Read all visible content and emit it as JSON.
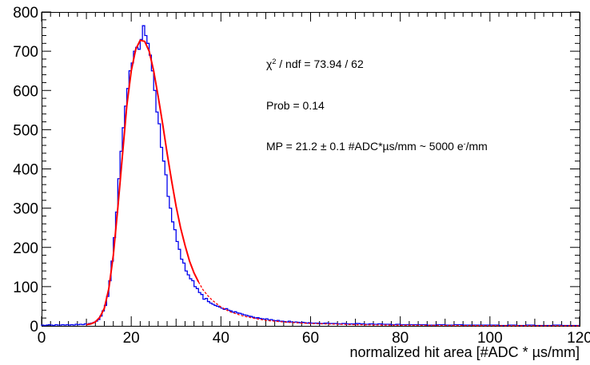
{
  "chart_data": {
    "type": "histogram",
    "title": "",
    "xlabel": "normalized hit area [#ADC * µs/mm]",
    "ylabel": "",
    "xlim": [
      0,
      120
    ],
    "ylim": [
      0,
      800
    ],
    "xticks": [
      0,
      20,
      40,
      60,
      80,
      100,
      120
    ],
    "yticks": [
      0,
      100,
      200,
      300,
      400,
      500,
      600,
      700,
      800
    ],
    "bin_width": 0.5,
    "grid": false,
    "legend": "none",
    "histogram": {
      "color": "#0000ee",
      "bins": [
        [
          0,
          2
        ],
        [
          0.5,
          1
        ],
        [
          1,
          2
        ],
        [
          1.5,
          3
        ],
        [
          2,
          2
        ],
        [
          2.5,
          1
        ],
        [
          3,
          3
        ],
        [
          3.5,
          2
        ],
        [
          4,
          2
        ],
        [
          4.5,
          3
        ],
        [
          5,
          2
        ],
        [
          5.5,
          3
        ],
        [
          6,
          2
        ],
        [
          6.5,
          3
        ],
        [
          7,
          2
        ],
        [
          7.5,
          4
        ],
        [
          8,
          3
        ],
        [
          8.5,
          4
        ],
        [
          9,
          3
        ],
        [
          9.5,
          5
        ],
        [
          10,
          4
        ],
        [
          10.5,
          6
        ],
        [
          11,
          7
        ],
        [
          11.5,
          9
        ],
        [
          12,
          12
        ],
        [
          12.5,
          16
        ],
        [
          13,
          25
        ],
        [
          13.5,
          38
        ],
        [
          14,
          52
        ],
        [
          14.5,
          75
        ],
        [
          15,
          115
        ],
        [
          15.5,
          165
        ],
        [
          16,
          225
        ],
        [
          16.5,
          290
        ],
        [
          17,
          375
        ],
        [
          17.5,
          445
        ],
        [
          18,
          505
        ],
        [
          18.5,
          560
        ],
        [
          19,
          605
        ],
        [
          19.5,
          650
        ],
        [
          20,
          670
        ],
        [
          20.5,
          700
        ],
        [
          21,
          710
        ],
        [
          21.5,
          705
        ],
        [
          22,
          730
        ],
        [
          22.5,
          765
        ],
        [
          23,
          740
        ],
        [
          23.5,
          720
        ],
        [
          24,
          690
        ],
        [
          24.5,
          650
        ],
        [
          25,
          600
        ],
        [
          25.5,
          545
        ],
        [
          26,
          515
        ],
        [
          26.5,
          455
        ],
        [
          27,
          420
        ],
        [
          27.5,
          385
        ],
        [
          28,
          330
        ],
        [
          28.5,
          300
        ],
        [
          29,
          265
        ],
        [
          29.5,
          245
        ],
        [
          30,
          215
        ],
        [
          30.5,
          195
        ],
        [
          31,
          170
        ],
        [
          31.5,
          160
        ],
        [
          32,
          140
        ],
        [
          32.5,
          130
        ],
        [
          33,
          120
        ],
        [
          33.5,
          115
        ],
        [
          34,
          100
        ],
        [
          34.5,
          95
        ],
        [
          35,
          85
        ],
        [
          35.5,
          80
        ],
        [
          36,
          68
        ],
        [
          36.5,
          70
        ],
        [
          37,
          62
        ],
        [
          37.5,
          58
        ],
        [
          38,
          55
        ],
        [
          38.5,
          52
        ],
        [
          39,
          50
        ],
        [
          39.5,
          48
        ],
        [
          40,
          45
        ],
        [
          40.5,
          42
        ],
        [
          41,
          44
        ],
        [
          41.5,
          40
        ],
        [
          42,
          38
        ],
        [
          42.5,
          35
        ],
        [
          43,
          36
        ],
        [
          43.5,
          33
        ],
        [
          44,
          32
        ],
        [
          44.5,
          30
        ],
        [
          45,
          28
        ],
        [
          45.5,
          27
        ],
        [
          46,
          25
        ],
        [
          46.5,
          24
        ],
        [
          47,
          22
        ],
        [
          47.5,
          20
        ],
        [
          48,
          21
        ],
        [
          48.5,
          19
        ],
        [
          49,
          18
        ],
        [
          49.5,
          17
        ],
        [
          50,
          18
        ],
        [
          50.5,
          15
        ],
        [
          51,
          16
        ],
        [
          51.5,
          14
        ],
        [
          52,
          13
        ],
        [
          52.5,
          14
        ],
        [
          53,
          12
        ],
        [
          53.5,
          12
        ],
        [
          54,
          11
        ],
        [
          54.5,
          10
        ],
        [
          55,
          12
        ],
        [
          55.5,
          10
        ],
        [
          56,
          9
        ],
        [
          56.5,
          10
        ],
        [
          57,
          9
        ],
        [
          57.5,
          8
        ],
        [
          58,
          9
        ],
        [
          58.5,
          8
        ],
        [
          59,
          7
        ],
        [
          59.5,
          8
        ],
        [
          60,
          7
        ],
        [
          61,
          7
        ],
        [
          62,
          6
        ],
        [
          63,
          7
        ],
        [
          64,
          6
        ],
        [
          65,
          6
        ],
        [
          66,
          5
        ],
        [
          67,
          6
        ],
        [
          68,
          5
        ],
        [
          69,
          5
        ],
        [
          70,
          6
        ],
        [
          71,
          5
        ],
        [
          72,
          4
        ],
        [
          73,
          5
        ],
        [
          74,
          4
        ],
        [
          75,
          5
        ],
        [
          76,
          4
        ],
        [
          77,
          4
        ],
        [
          78,
          3
        ],
        [
          79,
          4
        ],
        [
          80,
          3
        ],
        [
          82,
          3
        ],
        [
          84,
          3
        ],
        [
          86,
          2
        ],
        [
          88,
          3
        ],
        [
          90,
          2
        ],
        [
          92,
          3
        ],
        [
          94,
          2
        ],
        [
          96,
          2
        ],
        [
          98,
          2
        ],
        [
          100,
          2
        ],
        [
          102,
          1
        ],
        [
          104,
          2
        ],
        [
          106,
          1
        ],
        [
          108,
          2
        ],
        [
          110,
          1
        ],
        [
          112,
          1
        ],
        [
          114,
          2
        ],
        [
          116,
          1
        ],
        [
          118,
          1
        ],
        [
          119.5,
          1
        ]
      ]
    },
    "fit": {
      "name": "",
      "color": "#ff0000",
      "solid_range": [
        10,
        35
      ],
      "points": [
        [
          0,
          0
        ],
        [
          5,
          0
        ],
        [
          8,
          1
        ],
        [
          10,
          3
        ],
        [
          11,
          5
        ],
        [
          12,
          10
        ],
        [
          13,
          22
        ],
        [
          14,
          45
        ],
        [
          15,
          95
        ],
        [
          16,
          180
        ],
        [
          17,
          300
        ],
        [
          18,
          430
        ],
        [
          19,
          560
        ],
        [
          20,
          650
        ],
        [
          21,
          705
        ],
        [
          22,
          728
        ],
        [
          23,
          725
        ],
        [
          24,
          700
        ],
        [
          25,
          650
        ],
        [
          26,
          585
        ],
        [
          27,
          515
        ],
        [
          28,
          440
        ],
        [
          29,
          370
        ],
        [
          30,
          305
        ],
        [
          31,
          250
        ],
        [
          32,
          205
        ],
        [
          33,
          165
        ],
        [
          34,
          135
        ],
        [
          35,
          112
        ],
        [
          36,
          92
        ],
        [
          37,
          78
        ],
        [
          38,
          66
        ],
        [
          40,
          48
        ],
        [
          42,
          36
        ],
        [
          45,
          25
        ],
        [
          48,
          18
        ],
        [
          50,
          14
        ],
        [
          55,
          9
        ],
        [
          60,
          6
        ],
        [
          70,
          3
        ],
        [
          80,
          1.5
        ],
        [
          90,
          1
        ],
        [
          100,
          0.5
        ],
        [
          110,
          0.3
        ],
        [
          120,
          0.2
        ]
      ]
    },
    "annotations": [
      {
        "text_main": "χ",
        "sup": "2",
        "text_rest": " / ndf  = 73.94 / 62"
      },
      {
        "text": "Prob  = 0.14"
      },
      {
        "text_main": "MP  = 21.2 ± 0.1 #ADC*µs/mm ~ 5000 e",
        "sup": "-",
        "text_rest": "/mm"
      }
    ]
  }
}
